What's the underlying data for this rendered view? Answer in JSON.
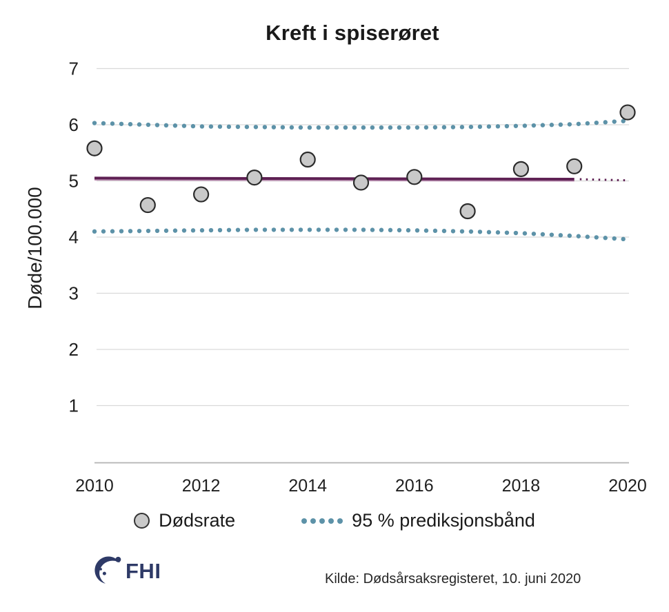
{
  "title": "Kreft i spiserøret",
  "chart_data": {
    "type": "line",
    "title": "Kreft i spiserøret",
    "xlabel": "",
    "ylabel": "Døde/100.000",
    "x_range": [
      2010,
      2020
    ],
    "ylim": [
      0,
      7.2
    ],
    "yticks": [
      1,
      2,
      3,
      4,
      5,
      6,
      7
    ],
    "xticks": [
      2010,
      2012,
      2014,
      2016,
      2018,
      2020
    ],
    "grid": "horizontal",
    "legend_position": "bottom",
    "years": [
      2010,
      2011,
      2012,
      2013,
      2014,
      2015,
      2016,
      2017,
      2018,
      2019,
      2020
    ],
    "series": [
      {
        "name": "Dødsrate",
        "style": "scatter",
        "values": [
          5.58,
          4.57,
          4.76,
          5.06,
          5.38,
          4.97,
          5.07,
          4.46,
          5.21,
          5.26,
          6.22
        ]
      },
      {
        "name": "trend-solid",
        "style": "line",
        "x": [
          2010,
          2019
        ],
        "values": [
          5.05,
          5.03
        ]
      },
      {
        "name": "trend-prediksjon",
        "style": "dashed-line",
        "x": [
          2019,
          2020
        ],
        "values": [
          5.03,
          5.01
        ]
      },
      {
        "name": "95 % prediksjonsbånd øvre",
        "style": "dotted",
        "values": [
          6.03,
          6.0,
          5.97,
          5.96,
          5.95,
          5.95,
          5.95,
          5.96,
          5.98,
          6.01,
          6.07
        ]
      },
      {
        "name": "95 % prediksjonsbånd nedre",
        "style": "dotted",
        "values": [
          4.1,
          4.11,
          4.12,
          4.13,
          4.13,
          4.13,
          4.12,
          4.1,
          4.07,
          4.02,
          3.96
        ]
      }
    ],
    "colors": {
      "point_fill": "#c9c9c9",
      "point_stroke": "#2b2b2b",
      "band": "#5d92a8",
      "trend": "#5e2053",
      "trend_fringe": "#a86b9b",
      "grid": "#d9d9d9",
      "axis": "#b3b3b3",
      "text": "#1f1f1f"
    }
  },
  "legend": {
    "items": [
      {
        "label": "Dødsrate",
        "marker": "circle"
      },
      {
        "label": "95 % prediksjonsbånd",
        "marker": "dots"
      }
    ]
  },
  "footer": {
    "logo_text": "FHI",
    "logo_color": "#2e3a67",
    "source": "Kilde: Dødsårsaksregisteret, 10. juni 2020"
  }
}
